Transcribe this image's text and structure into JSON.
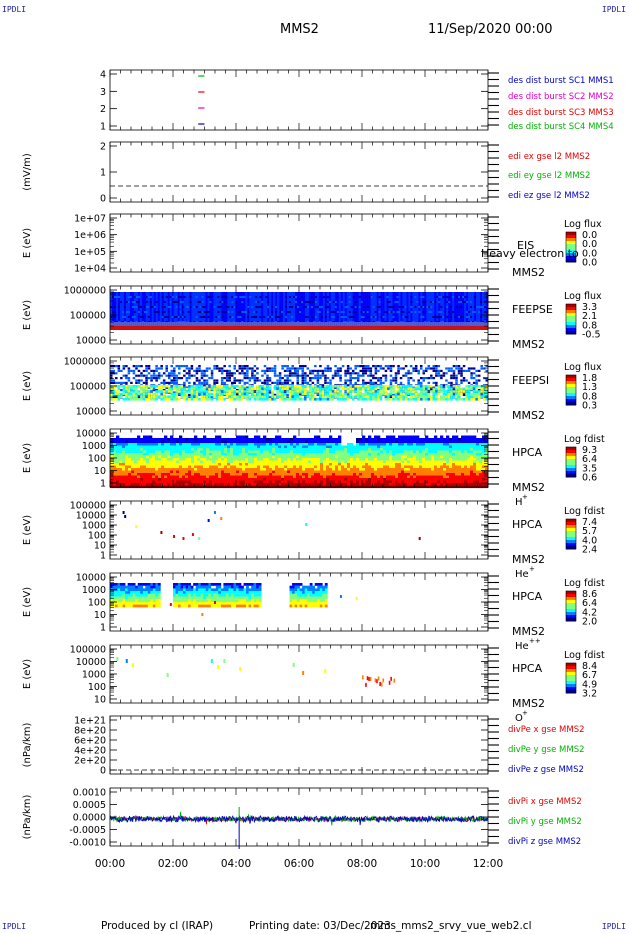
{
  "watermarks": [
    "IPDLI",
    "IPDLI",
    "IPDLI",
    "IPDLI"
  ],
  "header": {
    "mission": "MMS2",
    "date": "11/Sep/2020 00:00"
  },
  "footer": {
    "produced_by": "Produced by cl (IRAP)",
    "printing_date": "Printing date: 03/Dec/2023",
    "filename": "mms_mms2_srvy_vue_web2.cl"
  },
  "time_axis": [
    "00:00",
    "02:00",
    "04:00",
    "06:00",
    "08:00",
    "10:00",
    "12:00"
  ],
  "colors": {
    "red": "#e60000",
    "green": "#00b300",
    "magenta": "#e000c8",
    "blue": "#0000c8",
    "spectro": [
      "#00008f",
      "#0000ff",
      "#0080ff",
      "#00ffff",
      "#80ff80",
      "#ffff00",
      "#ff8000",
      "#ff0000",
      "#aa0000"
    ]
  },
  "chart_data": [
    {
      "type": "line",
      "panel": "burst",
      "yticks": [
        "4",
        "3",
        "2",
        "1"
      ],
      "ylim": [
        0.5,
        4.5
      ],
      "series": [
        {
          "name": "des dist burst SC1 MMS1",
          "color": "#0000c8",
          "y": 1,
          "x": [
            "02:48",
            "03:00"
          ]
        },
        {
          "name": "des dist burst SC2 MMS2",
          "color": "#e000c8",
          "y": 2,
          "x": [
            "02:48",
            "03:00"
          ]
        },
        {
          "name": "des dist burst SC3 MMS3",
          "color": "#e60000",
          "y": 3,
          "x": [
            "02:48",
            "03:00"
          ]
        },
        {
          "name": "des dist burst SC4 MMS4",
          "color": "#00b300",
          "y": 4,
          "x": [
            "02:48",
            "03:00"
          ]
        }
      ]
    },
    {
      "type": "line",
      "panel": "edi",
      "ylabel": "(mV/m)",
      "yticks": [
        "2",
        "1",
        "0"
      ],
      "ylim": [
        -0.4,
        2.3
      ],
      "series": [
        {
          "name": "edi ex gse l2 MMS2",
          "color": "#e60000"
        },
        {
          "name": "edi ey gse l2 MMS2",
          "color": "#00b300"
        },
        {
          "name": "edi ez gse l2 MMS2",
          "color": "#0000c8"
        }
      ]
    },
    {
      "type": "heatmap",
      "panel": "EIS",
      "ylabel": "E (eV)",
      "yticks": [
        "1e+07",
        "1e+06",
        "1e+05",
        "1e+04"
      ],
      "label": [
        "EIS",
        "MMS2"
      ],
      "overlap_text": "Heavy electron to",
      "colorbar_title": "Log flux",
      "colorbar_ticks": [
        "0.0",
        "0.0",
        "0.0",
        "0.0"
      ]
    },
    {
      "type": "heatmap",
      "panel": "FEEPSE",
      "ylabel": "E (eV)",
      "yticks": [
        "1000000",
        "100000",
        "10000"
      ],
      "label": [
        "FEEPSE",
        "MMS2"
      ],
      "colorbar_title": "Log flux",
      "colorbar_ticks": [
        "3.3",
        "2.1",
        "0.8",
        "-0.5"
      ]
    },
    {
      "type": "heatmap",
      "panel": "FEEPSI",
      "ylabel": "E (eV)",
      "yticks": [
        "1000000",
        "100000",
        "10000"
      ],
      "label": [
        "FEEPSI",
        "MMS2"
      ],
      "colorbar_title": "Log flux",
      "colorbar_ticks": [
        "1.8",
        "1.3",
        "0.8",
        "0.3"
      ]
    },
    {
      "type": "heatmap",
      "panel": "HPCA H+",
      "ylabel": "E (eV)",
      "yticks": [
        "10000",
        "1000",
        "100",
        "10",
        "1"
      ],
      "label": [
        "HPCA",
        "MMS2"
      ],
      "species": "H",
      "species_sup": "+",
      "colorbar_title": "Log fdist",
      "colorbar_ticks": [
        "9.3",
        "6.4",
        "3.5",
        "0.6"
      ]
    },
    {
      "type": "heatmap",
      "panel": "HPCA He+",
      "ylabel": "E (eV)",
      "yticks": [
        "100000",
        "10000",
        "1000",
        "100",
        "10",
        "1"
      ],
      "label": [
        "HPCA",
        "MMS2"
      ],
      "species": "He",
      "species_sup": "+",
      "colorbar_title": "Log fdist",
      "colorbar_ticks": [
        "7.4",
        "5.7",
        "4.0",
        "2.4"
      ]
    },
    {
      "type": "heatmap",
      "panel": "HPCA He++",
      "ylabel": "E (eV)",
      "yticks": [
        "10000",
        "1000",
        "100",
        "10",
        "1"
      ],
      "label": [
        "HPCA",
        "MMS2"
      ],
      "species": "He",
      "species_sup": "++",
      "colorbar_title": "Log fdist",
      "colorbar_ticks": [
        "8.6",
        "6.4",
        "4.2",
        "2.0"
      ]
    },
    {
      "type": "heatmap",
      "panel": "HPCA O+",
      "ylabel": "E (eV)",
      "yticks": [
        "100000",
        "10000",
        "1000",
        "100",
        "10"
      ],
      "label": [
        "HPCA",
        "MMS2"
      ],
      "species": "O",
      "species_sup": "+",
      "colorbar_title": "Log fdist",
      "colorbar_ticks": [
        "8.4",
        "6.7",
        "4.9",
        "3.2"
      ]
    },
    {
      "type": "line",
      "panel": "divPe",
      "ylabel": "(nPa/km)",
      "yticks": [
        "1e+21",
        "8e+20",
        "6e+20",
        "4e+20",
        "2e+20",
        "0"
      ],
      "ylim": [
        -1e+20,
        1.05e+21
      ],
      "series": [
        {
          "name": "divPe x gse MMS2",
          "color": "#e60000"
        },
        {
          "name": "divPe y gse MMS2",
          "color": "#00b300"
        },
        {
          "name": "divPe z gse MMS2",
          "color": "#0000c8"
        }
      ]
    },
    {
      "type": "line",
      "panel": "divPi",
      "ylabel": "(nPa/km)",
      "yticks": [
        "0.0010",
        "0.0005",
        "0.0000",
        "-0.0005",
        "-0.0010"
      ],
      "ylim": [
        -0.0015,
        0.0015
      ],
      "series": [
        {
          "name": "divPi x gse MMS2",
          "color": "#e60000"
        },
        {
          "name": "divPi y gse MMS2",
          "color": "#00b300"
        },
        {
          "name": "divPi z gse MMS2",
          "color": "#0000c8"
        }
      ]
    }
  ]
}
